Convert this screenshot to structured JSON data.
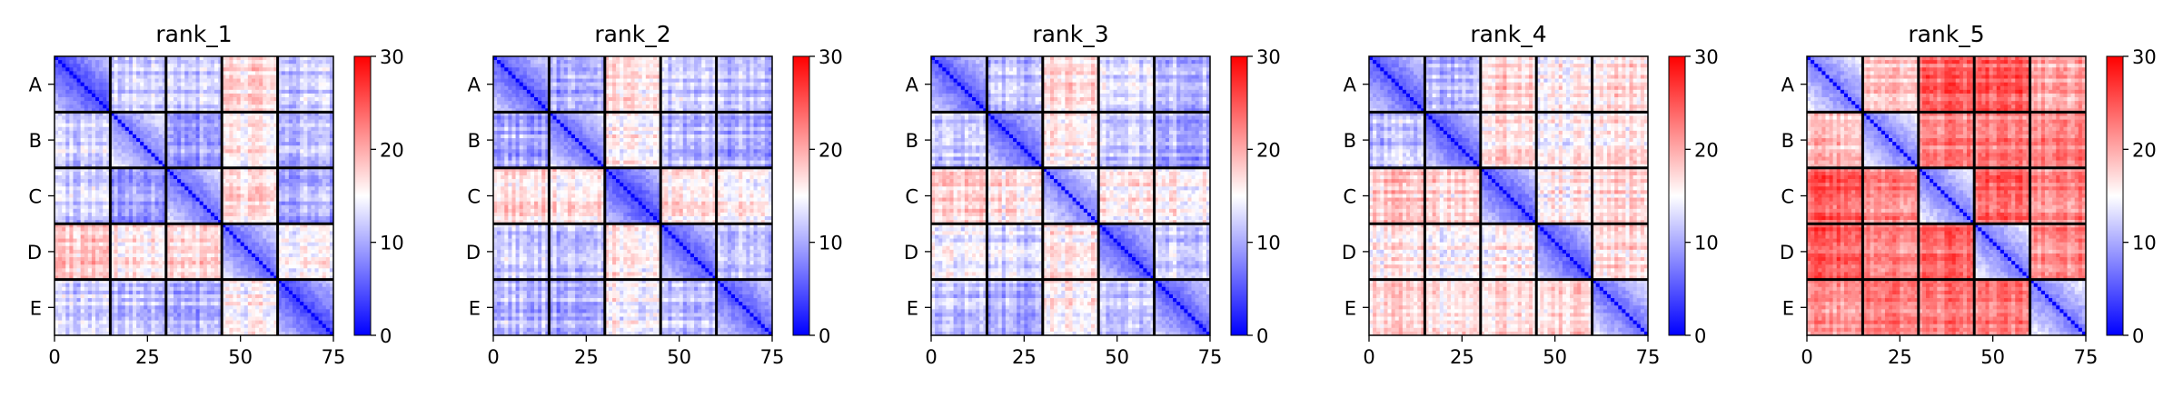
{
  "figure": {
    "colormap": "bwr",
    "colormap_colors": [
      "#0000ff",
      "#ffffff",
      "#ff0000"
    ]
  },
  "chart_data": [
    {
      "type": "heatmap",
      "title": "rank_1",
      "xlabel": "",
      "ylabel": "",
      "chain_labels": [
        "A",
        "B",
        "C",
        "D",
        "E"
      ],
      "x_ticks": [
        0,
        25,
        50,
        75
      ],
      "xlim": [
        0,
        75
      ],
      "ylim": [
        0,
        75
      ],
      "chain_boundaries": [
        0,
        15,
        30,
        45,
        60,
        75
      ],
      "colorbar": {
        "ticks": [
          0,
          10,
          20,
          30
        ],
        "range": [
          0,
          30
        ]
      },
      "diagonal_block_mean": [
        4,
        7,
        6,
        6,
        4
      ],
      "block_mean_values": [
        [
          4,
          12,
          12,
          17,
          12
        ],
        [
          12,
          7,
          9,
          16,
          11
        ],
        [
          12,
          9,
          6,
          17,
          10
        ],
        [
          18,
          16,
          17,
          6,
          15
        ],
        [
          12,
          11,
          10,
          15,
          4
        ]
      ]
    },
    {
      "type": "heatmap",
      "title": "rank_2",
      "xlabel": "",
      "ylabel": "",
      "chain_labels": [
        "A",
        "B",
        "C",
        "D",
        "E"
      ],
      "x_ticks": [
        0,
        25,
        50,
        75
      ],
      "xlim": [
        0,
        75
      ],
      "ylim": [
        0,
        75
      ],
      "chain_boundaries": [
        0,
        15,
        30,
        45,
        60,
        75
      ],
      "colorbar": {
        "ticks": [
          0,
          10,
          20,
          30
        ],
        "range": [
          0,
          30
        ]
      },
      "diagonal_block_mean": [
        5,
        6,
        4,
        5,
        5
      ],
      "block_mean_values": [
        [
          5,
          10,
          17,
          12,
          11
        ],
        [
          10,
          6,
          16,
          11,
          10
        ],
        [
          17,
          16,
          4,
          16,
          15
        ],
        [
          12,
          11,
          16,
          5,
          11
        ],
        [
          11,
          10,
          15,
          11,
          5
        ]
      ]
    },
    {
      "type": "heatmap",
      "title": "rank_3",
      "xlabel": "",
      "ylabel": "",
      "chain_labels": [
        "A",
        "B",
        "C",
        "D",
        "E"
      ],
      "x_ticks": [
        0,
        25,
        50,
        75
      ],
      "xlim": [
        0,
        75
      ],
      "ylim": [
        0,
        75
      ],
      "chain_boundaries": [
        0,
        15,
        30,
        45,
        60,
        75
      ],
      "colorbar": {
        "ticks": [
          0,
          10,
          20,
          30
        ],
        "range": [
          0,
          30
        ]
      },
      "diagonal_block_mean": [
        5,
        5,
        7,
        5,
        5
      ],
      "block_mean_values": [
        [
          5,
          11,
          17,
          13,
          11
        ],
        [
          11,
          5,
          16,
          12,
          10
        ],
        [
          17,
          16,
          7,
          16,
          16
        ],
        [
          13,
          12,
          16,
          5,
          12
        ],
        [
          11,
          10,
          16,
          12,
          5
        ]
      ]
    },
    {
      "type": "heatmap",
      "title": "rank_4",
      "xlabel": "",
      "ylabel": "",
      "chain_labels": [
        "A",
        "B",
        "C",
        "D",
        "E"
      ],
      "x_ticks": [
        0,
        25,
        50,
        75
      ],
      "xlim": [
        0,
        75
      ],
      "ylim": [
        0,
        75
      ],
      "chain_boundaries": [
        0,
        15,
        30,
        45,
        60,
        75
      ],
      "colorbar": {
        "ticks": [
          0,
          10,
          20,
          30
        ],
        "range": [
          0,
          30
        ]
      },
      "diagonal_block_mean": [
        5,
        5,
        5,
        5,
        6
      ],
      "block_mean_values": [
        [
          5,
          11,
          18,
          16,
          17
        ],
        [
          11,
          5,
          17,
          15,
          16
        ],
        [
          18,
          17,
          5,
          16,
          17
        ],
        [
          16,
          15,
          16,
          5,
          17
        ],
        [
          17,
          16,
          17,
          17,
          6
        ]
      ]
    },
    {
      "type": "heatmap",
      "title": "rank_5",
      "xlabel": "",
      "ylabel": "",
      "chain_labels": [
        "A",
        "B",
        "C",
        "D",
        "E"
      ],
      "x_ticks": [
        0,
        25,
        50,
        75
      ],
      "xlim": [
        0,
        75
      ],
      "ylim": [
        0,
        75
      ],
      "chain_boundaries": [
        0,
        15,
        30,
        45,
        60,
        75
      ],
      "colorbar": {
        "ticks": [
          0,
          10,
          20,
          30
        ],
        "range": [
          0,
          30
        ]
      },
      "diagonal_block_mean": [
        7,
        7,
        7,
        7,
        7
      ],
      "block_mean_values": [
        [
          7,
          18,
          24,
          24,
          20
        ],
        [
          18,
          7,
          22,
          22,
          22
        ],
        [
          24,
          22,
          7,
          24,
          22
        ],
        [
          24,
          22,
          24,
          7,
          22
        ],
        [
          20,
          22,
          22,
          22,
          7
        ]
      ]
    }
  ]
}
